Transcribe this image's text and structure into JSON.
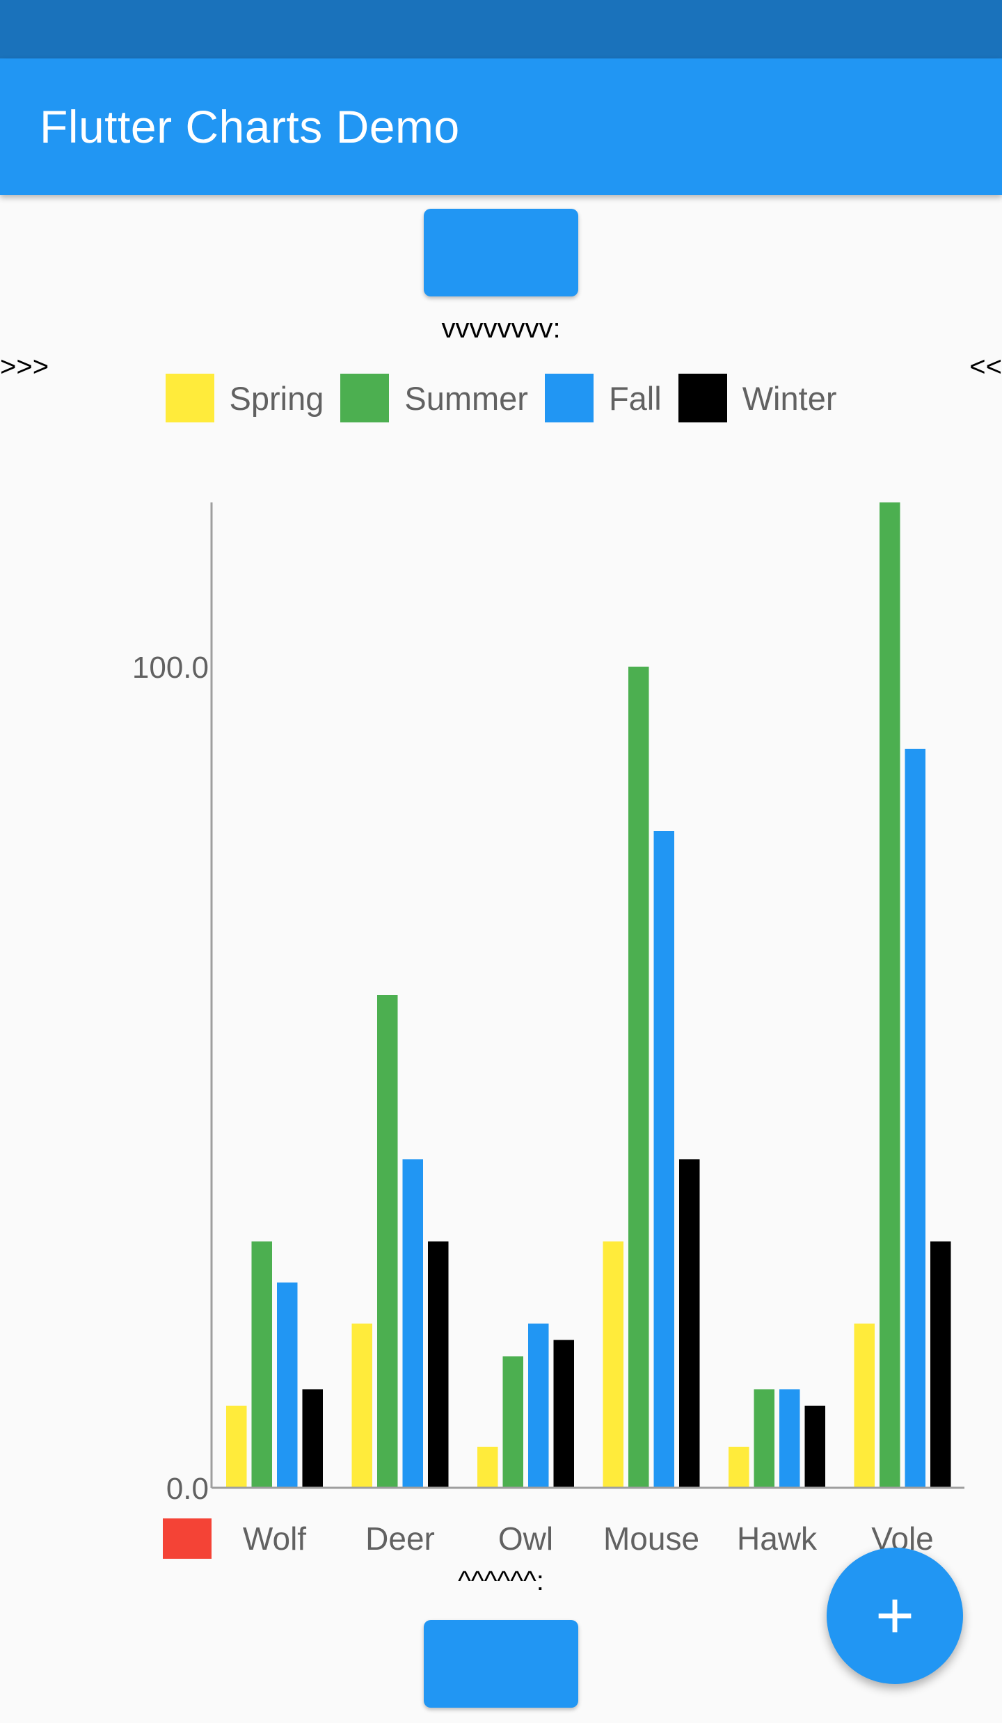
{
  "app_bar": {
    "title": "Flutter Charts Demo"
  },
  "markers": {
    "top": "vvvvvvvv:",
    "left": ">>>",
    "right": "<<",
    "bottom": "^^^^^^:"
  },
  "fab": {
    "icon": "plus-icon",
    "label": "+"
  },
  "colors": {
    "status_bar": "#1a72bb",
    "accent": "#2196f3",
    "spring": "#ffeb3b",
    "summer": "#4caf50",
    "fall": "#2196f3",
    "winter": "#000000",
    "axis_legend_swatch": "#f44336"
  },
  "chart_data": {
    "type": "bar",
    "legend_position": "top",
    "grid": false,
    "categories": [
      "Wolf",
      "Deer",
      "Owl",
      "Mouse",
      "Hawk",
      "Vole"
    ],
    "series": [
      {
        "name": "Spring",
        "color": "#ffeb3b",
        "values": [
          10,
          20,
          5,
          30,
          5,
          20
        ]
      },
      {
        "name": "Summer",
        "color": "#4caf50",
        "values": [
          30,
          60,
          16,
          100,
          12,
          120
        ]
      },
      {
        "name": "Fall",
        "color": "#2196f3",
        "values": [
          25,
          40,
          20,
          80,
          12,
          90
        ]
      },
      {
        "name": "Winter",
        "color": "#000000",
        "values": [
          12,
          30,
          18,
          40,
          10,
          30
        ]
      }
    ],
    "y_ticks": [
      "0.0",
      "100.0"
    ],
    "ylim": [
      0,
      120
    ],
    "x_legend_swatch_color": "#f44336"
  }
}
